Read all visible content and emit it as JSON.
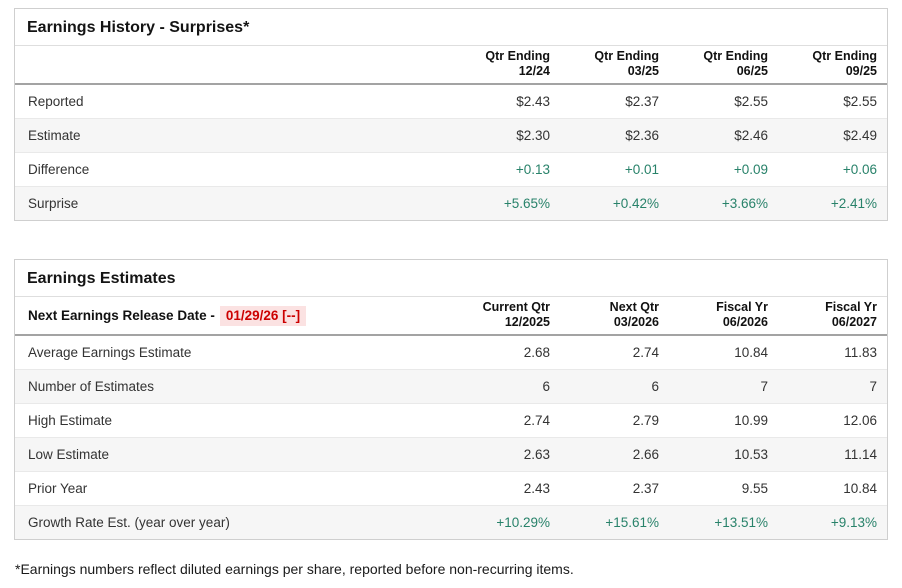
{
  "colors": {
    "accent-green": "#28826a",
    "alert-red": "#cc0000",
    "alert-red-bg": "#fbe2e2"
  },
  "surprises": {
    "title": "Earnings History - Surprises*",
    "columns": [
      {
        "line1": "Qtr Ending",
        "line2": "12/24"
      },
      {
        "line1": "Qtr Ending",
        "line2": "03/25"
      },
      {
        "line1": "Qtr Ending",
        "line2": "06/25"
      },
      {
        "line1": "Qtr Ending",
        "line2": "09/25"
      }
    ],
    "rows": [
      {
        "label": "Reported",
        "values": [
          "$2.43",
          "$2.37",
          "$2.55",
          "$2.55"
        ]
      },
      {
        "label": "Estimate",
        "values": [
          "$2.30",
          "$2.36",
          "$2.46",
          "$2.49"
        ]
      },
      {
        "label": "Difference",
        "values": [
          "+0.13",
          "+0.01",
          "+0.09",
          "+0.06"
        ]
      },
      {
        "label": "Surprise",
        "values": [
          "+5.65%",
          "+0.42%",
          "+3.66%",
          "+2.41%"
        ]
      }
    ]
  },
  "estimates": {
    "title": "Earnings Estimates",
    "release_date_label": "Next Earnings Release Date -",
    "release_date_value": "01/29/26 [--]",
    "columns": [
      {
        "line1": "Current Qtr",
        "line2": "12/2025"
      },
      {
        "line1": "Next Qtr",
        "line2": "03/2026"
      },
      {
        "line1": "Fiscal Yr",
        "line2": "06/2026"
      },
      {
        "line1": "Fiscal Yr",
        "line2": "06/2027"
      }
    ],
    "rows": [
      {
        "label": "Average Earnings Estimate",
        "values": [
          "2.68",
          "2.74",
          "10.84",
          "11.83"
        ]
      },
      {
        "label": "Number of Estimates",
        "values": [
          "6",
          "6",
          "7",
          "7"
        ]
      },
      {
        "label": "High Estimate",
        "values": [
          "2.74",
          "2.79",
          "10.99",
          "12.06"
        ]
      },
      {
        "label": "Low Estimate",
        "values": [
          "2.63",
          "2.66",
          "10.53",
          "11.14"
        ]
      },
      {
        "label": "Prior Year",
        "values": [
          "2.43",
          "2.37",
          "9.55",
          "10.84"
        ]
      },
      {
        "label": "Growth Rate Est. (year over year)",
        "values": [
          "+10.29%",
          "+15.61%",
          "+13.51%",
          "+9.13%"
        ]
      }
    ]
  },
  "footnote": "*Earnings numbers reflect diluted earnings per share, reported before non-recurring items."
}
